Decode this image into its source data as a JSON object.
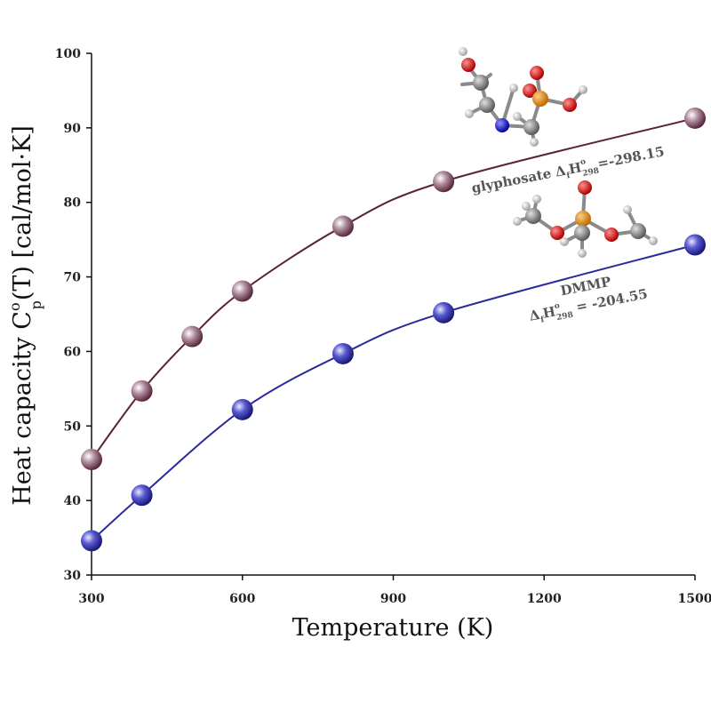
{
  "chart_data": {
    "type": "line",
    "title": "",
    "xlabel": "Temperature (K)",
    "ylabel_parts": {
      "main": "Heat capacity C",
      "sub": "p",
      "sup": "o",
      "rest": "(T) [cal/mol·K]"
    },
    "xlim": [
      300,
      1500
    ],
    "ylim": [
      30,
      100
    ],
    "xticks": [
      300,
      600,
      900,
      1200,
      1500
    ],
    "yticks": [
      30,
      40,
      50,
      60,
      70,
      80,
      90,
      100
    ],
    "grid": false,
    "series": [
      {
        "name": "glyphosate",
        "color": "#5a2430",
        "marker_color": "#8a5a6a",
        "x": [
          300,
          400,
          500,
          600,
          800,
          1000,
          1500
        ],
        "y": [
          45.5,
          54.7,
          62.0,
          68.1,
          76.8,
          82.8,
          91.3
        ]
      },
      {
        "name": "DMMP",
        "color": "#2a2a9a",
        "marker_color": "#4a4ab8",
        "x": [
          300,
          400,
          600,
          800,
          1000,
          1500
        ],
        "y": [
          34.6,
          40.7,
          52.2,
          59.7,
          65.2,
          74.3
        ]
      }
    ],
    "annotations": {
      "glyphosate": {
        "name": "glyphosate",
        "delta": "Δ",
        "f": "f",
        "H": "H",
        "sup": "o",
        "sub": "298",
        "value": "=-298.15"
      },
      "dmmp": {
        "name": "DMMP",
        "delta": "Δ",
        "f": "f",
        "H": "H",
        "sup": "o",
        "sub": "298",
        "value": " = -204.55"
      }
    }
  },
  "colors": {
    "oxygen": "#d01010",
    "phosphorus": "#e08a10",
    "carbon": "#8a8a8a",
    "nitrogen": "#1a1ad0",
    "hydrogen": "#e8e8e8"
  }
}
